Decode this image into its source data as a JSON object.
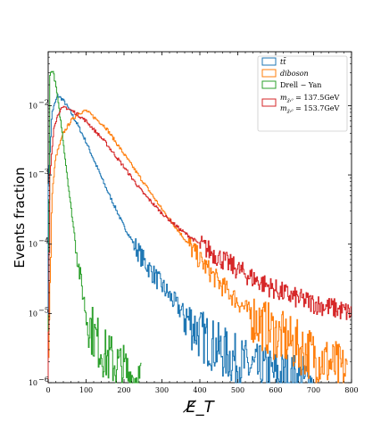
{
  "chart_data": {
    "type": "line",
    "ylabel": "Events fraction",
    "xlabel": "E̸_T",
    "xlim": [
      0,
      800
    ],
    "ylim": [
      1e-06,
      0.06
    ],
    "yscale": "log",
    "x_ticks": [
      0,
      100,
      200,
      300,
      400,
      500,
      600,
      700,
      800
    ],
    "y_ticks": [
      {
        "value": 1e-06,
        "mantissa": "10",
        "exp": "−6"
      },
      {
        "value": 1e-05,
        "mantissa": "10",
        "exp": "−5"
      },
      {
        "value": 0.0001,
        "mantissa": "10",
        "exp": "−4"
      },
      {
        "value": 0.001,
        "mantissa": "10",
        "exp": "−3"
      },
      {
        "value": 0.01,
        "mantissa": "10",
        "exp": "−2"
      }
    ],
    "grid": false,
    "legend_position": "top-right",
    "series": [
      {
        "name": "tt̄",
        "color": "#1f77b4",
        "peak_x": 25,
        "peak_y": 0.014,
        "x_max": 700,
        "points": [
          [
            0,
            0.0006
          ],
          [
            10,
            0.008
          ],
          [
            25,
            0.014
          ],
          [
            40,
            0.012
          ],
          [
            60,
            0.008
          ],
          [
            80,
            0.005
          ],
          [
            100,
            0.003
          ],
          [
            150,
            0.0007
          ],
          [
            200,
            0.00018
          ],
          [
            250,
            6e-05
          ],
          [
            300,
            2.5e-05
          ],
          [
            350,
            1.1e-05
          ],
          [
            400,
            5e-06
          ],
          [
            450,
            3e-06
          ],
          [
            500,
            2e-06
          ],
          [
            550,
            1.5e-06
          ],
          [
            600,
            1.3e-06
          ],
          [
            650,
            1.1e-06
          ],
          [
            700,
            1e-06
          ]
        ]
      },
      {
        "name": "diboson",
        "color": "#ff7f0e",
        "peak_x": 100,
        "peak_y": 0.0085,
        "x_max": 790,
        "points": [
          [
            0,
            1e-06
          ],
          [
            10,
            0.0005
          ],
          [
            20,
            0.0018
          ],
          [
            40,
            0.004
          ],
          [
            60,
            0.006
          ],
          [
            80,
            0.0078
          ],
          [
            100,
            0.0085
          ],
          [
            150,
            0.005
          ],
          [
            200,
            0.002
          ],
          [
            250,
            0.0008
          ],
          [
            300,
            0.00032
          ],
          [
            350,
            0.00014
          ],
          [
            400,
            6e-05
          ],
          [
            450,
            2.8e-05
          ],
          [
            500,
            1.5e-05
          ],
          [
            550,
            8e-06
          ],
          [
            600,
            5e-06
          ],
          [
            650,
            3.5e-06
          ],
          [
            700,
            2.5e-06
          ],
          [
            750,
            1.8e-06
          ],
          [
            790,
            1.3e-06
          ]
        ]
      },
      {
        "name": "Drell − Yan",
        "color": "#2ca02c",
        "peak_x": 12,
        "peak_y": 0.033,
        "x_max": 245,
        "points": [
          [
            0,
            1e-06
          ],
          [
            5,
            0.028
          ],
          [
            12,
            0.033
          ],
          [
            20,
            0.02
          ],
          [
            30,
            0.008
          ],
          [
            40,
            0.003
          ],
          [
            50,
            0.001
          ],
          [
            60,
            0.00035
          ],
          [
            70,
            0.00013
          ],
          [
            80,
            5e-05
          ],
          [
            90,
            2.2e-05
          ],
          [
            100,
            1e-05
          ],
          [
            120,
            5e-06
          ],
          [
            150,
            2.5e-06
          ],
          [
            200,
            1.5e-06
          ],
          [
            245,
            1e-06
          ]
        ]
      },
      {
        "name": "m_{χ̃₁⁰} = 137.5GeV  m_{χ̃₂⁰} = 153.7GeV",
        "color": "#d62728",
        "peak_x": 45,
        "peak_y": 0.0095,
        "x_max": 800,
        "points": [
          [
            0,
            1e-06
          ],
          [
            5,
            0.001
          ],
          [
            15,
            0.005
          ],
          [
            30,
            0.0085
          ],
          [
            45,
            0.0095
          ],
          [
            70,
            0.008
          ],
          [
            100,
            0.006
          ],
          [
            150,
            0.003
          ],
          [
            200,
            0.0013
          ],
          [
            250,
            0.00055
          ],
          [
            300,
            0.00028
          ],
          [
            350,
            0.00016
          ],
          [
            400,
            0.0001
          ],
          [
            450,
            6.5e-05
          ],
          [
            500,
            4.3e-05
          ],
          [
            550,
            3e-05
          ],
          [
            600,
            2.2e-05
          ],
          [
            650,
            1.7e-05
          ],
          [
            700,
            1.4e-05
          ],
          [
            750,
            1.2e-05
          ],
          [
            800,
            1e-05
          ]
        ]
      }
    ],
    "legend": [
      {
        "label": "tt̄",
        "color": "#1f77b4",
        "style": "italic"
      },
      {
        "label": "diboson",
        "color": "#ff7f0e",
        "style": "italic"
      },
      {
        "label": "Drell − Yan",
        "color": "#2ca02c",
        "style": "normal"
      },
      {
        "label_line1": "m",
        "sub1": "χ̃₁⁰",
        "val1": " = 137.5GeV",
        "label_line2": "m",
        "sub2": "χ̃₂⁰",
        "val2": " = 153.7GeV",
        "color": "#d62728",
        "style": "normal"
      }
    ]
  }
}
